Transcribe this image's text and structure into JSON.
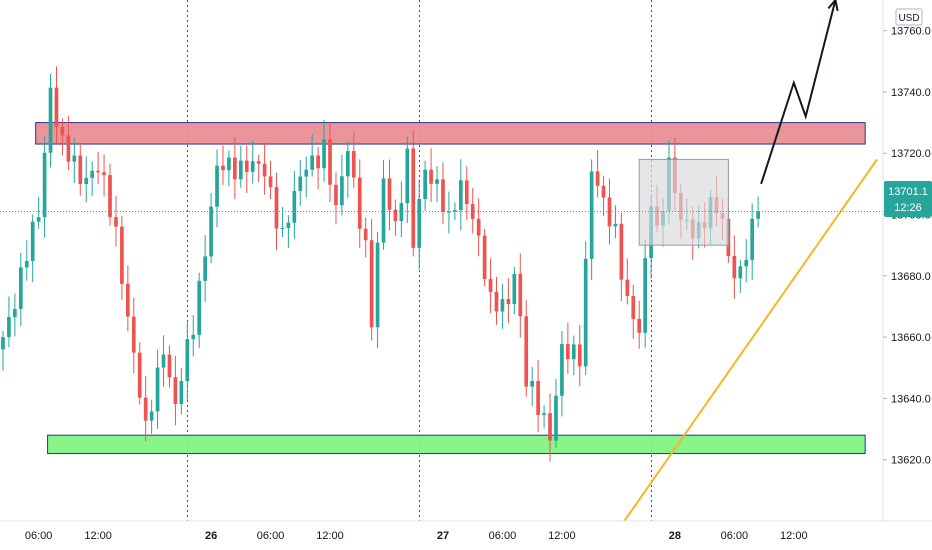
{
  "chart_data": {
    "type": "candlestick",
    "instrument_currency": "USD",
    "current_price": "13701.1",
    "countdown": "12:26",
    "ylim": [
      13600,
      13770
    ],
    "y_ticks": [
      {
        "value": 13620,
        "label": "13620.0"
      },
      {
        "value": 13640,
        "label": "13640.0"
      },
      {
        "value": 13660,
        "label": "13660.0"
      },
      {
        "value": 13680,
        "label": "13680.0"
      },
      {
        "value": 13700,
        "label": "13700.0"
      },
      {
        "value": 13720,
        "label": "13720.0"
      },
      {
        "value": 13740,
        "label": "13740.0"
      },
      {
        "value": 13760,
        "label": "13760.0"
      }
    ],
    "x_ticks": [
      {
        "label": "06:00",
        "bar": 6,
        "bold": false
      },
      {
        "label": "12:00",
        "bar": 16,
        "bold": false
      },
      {
        "label": "26",
        "bar": 35,
        "bold": true
      },
      {
        "label": "06:00",
        "bar": 45,
        "bold": false
      },
      {
        "label": "12:00",
        "bar": 55,
        "bold": false
      },
      {
        "label": "27",
        "bar": 74,
        "bold": true
      },
      {
        "label": "06:00",
        "bar": 84,
        "bold": false
      },
      {
        "label": "12:00",
        "bar": 94,
        "bold": false
      },
      {
        "label": "28",
        "bar": 113,
        "bold": true
      },
      {
        "label": "06:00",
        "bar": 123,
        "bold": false
      },
      {
        "label": "12:00",
        "bar": 133,
        "bold": false
      }
    ],
    "day_separators_bar": [
      31,
      70,
      109
    ],
    "bar_count": 128,
    "projection_bars": 20,
    "resistance_zone": {
      "low": 13723,
      "high": 13730,
      "from_bar": 5.5,
      "to_bar": 145,
      "color": "#e8898f"
    },
    "support_zone": {
      "low": 13622,
      "high": 13628,
      "from_bar": 7.5,
      "to_bar": 145,
      "color": "#7cf47c"
    },
    "consolidation_box": {
      "low": 13690,
      "high": 13718,
      "from_bar": 107,
      "to_bar": 122,
      "color": "#d9d9dc"
    },
    "trendline": {
      "from": {
        "bar": 104.5,
        "value": 13600
      },
      "to": {
        "bar": 147,
        "value": 13718
      },
      "color": "#f5b629"
    },
    "projection_path": [
      {
        "bar": 127.5,
        "value": 13710
      },
      {
        "bar": 133,
        "value": 13743
      },
      {
        "bar": 135,
        "value": 13732
      },
      {
        "bar": 140,
        "value": 13770
      }
    ],
    "colors": {
      "up": "#26a69a",
      "down": "#ef5350",
      "current_price": "#26a69a"
    },
    "segments": [
      [
        0,
        13660
      ],
      [
        6,
        13700
      ],
      [
        8,
        13742
      ],
      [
        10,
        13722
      ],
      [
        13,
        13712
      ],
      [
        16,
        13716
      ],
      [
        19,
        13693
      ],
      [
        21,
        13668
      ],
      [
        24,
        13628
      ],
      [
        27,
        13658
      ],
      [
        29,
        13637
      ],
      [
        32,
        13664
      ],
      [
        34,
        13690
      ],
      [
        36,
        13714
      ],
      [
        41,
        13717
      ],
      [
        44,
        13713
      ],
      [
        47,
        13694
      ],
      [
        51,
        13716
      ],
      [
        54,
        13722
      ],
      [
        56,
        13700
      ],
      [
        58,
        13723
      ],
      [
        61,
        13688
      ],
      [
        62,
        13664
      ],
      [
        64,
        13712
      ],
      [
        66,
        13697
      ],
      [
        68,
        13717
      ],
      [
        69,
        13690
      ],
      [
        71,
        13716
      ],
      [
        73,
        13710
      ],
      [
        75,
        13696
      ],
      [
        77,
        13710
      ],
      [
        79,
        13701
      ],
      [
        82,
        13670
      ],
      [
        85,
        13673
      ],
      [
        86,
        13682
      ],
      [
        88,
        13645
      ],
      [
        91,
        13635
      ],
      [
        92,
        13628
      ],
      [
        94,
        13654
      ],
      [
        97,
        13655
      ],
      [
        99,
        13715
      ],
      [
        101,
        13702
      ],
      [
        103,
        13695
      ],
      [
        105,
        13672
      ],
      [
        107,
        13660
      ],
      [
        109,
        13706
      ],
      [
        110,
        13695
      ],
      [
        112,
        13716
      ],
      [
        114,
        13697
      ],
      [
        117,
        13696
      ],
      [
        119,
        13702
      ],
      [
        121,
        13698
      ],
      [
        122,
        13686
      ],
      [
        124,
        13681
      ],
      [
        127,
        13701
      ]
    ]
  }
}
